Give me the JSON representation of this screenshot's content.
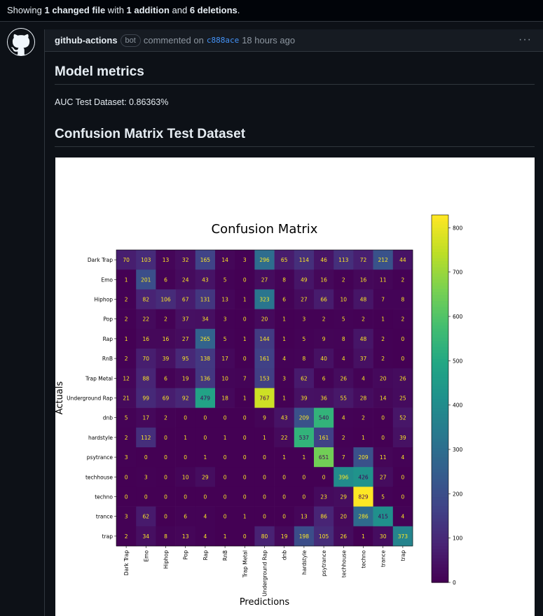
{
  "topbar": {
    "prefix": "Showing ",
    "files": "1 changed file",
    "with": " with ",
    "additions": "1 addition",
    "and": " and ",
    "deletions": "6 deletions",
    "suffix": "."
  },
  "comment": {
    "author": "github-actions",
    "badge": "bot",
    "action": "commented on",
    "sha": "c888ace",
    "time": "18 hours ago",
    "menu": "···"
  },
  "sections": {
    "metrics_title": "Model metrics",
    "auc_text": "AUC Test Dataset: 0.86363%",
    "cm_title": "Confusion Matrix Test Dataset"
  },
  "chart_data": {
    "type": "heatmap",
    "title": "Confusion Matrix",
    "xlabel": "Predictions",
    "ylabel": "Actuals",
    "colormap": "viridis",
    "colorbar": {
      "min": 0,
      "max": 829,
      "ticks": [
        0,
        100,
        200,
        300,
        400,
        500,
        600,
        700,
        800
      ]
    },
    "labels": [
      "Dark Trap",
      "Emo",
      "Hiphop",
      "Pop",
      "Rap",
      "RnB",
      "Trap Metal",
      "Underground Rap",
      "dnb",
      "hardstyle",
      "psytrance",
      "techhouse",
      "techno",
      "trance",
      "trap"
    ],
    "matrix": [
      [
        70,
        103,
        13,
        32,
        165,
        14,
        3,
        296,
        65,
        114,
        46,
        113,
        72,
        212,
        44
      ],
      [
        1,
        201,
        6,
        24,
        43,
        5,
        0,
        27,
        8,
        49,
        16,
        2,
        16,
        11,
        2
      ],
      [
        2,
        82,
        106,
        67,
        131,
        13,
        1,
        323,
        6,
        27,
        66,
        10,
        48,
        7,
        8
      ],
      [
        2,
        22,
        2,
        37,
        34,
        3,
        0,
        20,
        1,
        3,
        2,
        5,
        2,
        1,
        2
      ],
      [
        1,
        16,
        16,
        27,
        265,
        5,
        1,
        144,
        1,
        5,
        9,
        8,
        48,
        2,
        0
      ],
      [
        2,
        70,
        39,
        95,
        138,
        17,
        0,
        161,
        4,
        8,
        40,
        4,
        37,
        2,
        0
      ],
      [
        12,
        88,
        6,
        19,
        136,
        10,
        7,
        153,
        3,
        62,
        6,
        26,
        4,
        20,
        26
      ],
      [
        21,
        99,
        69,
        92,
        479,
        18,
        1,
        767,
        1,
        39,
        36,
        55,
        28,
        14,
        25
      ],
      [
        5,
        17,
        2,
        0,
        0,
        0,
        0,
        9,
        43,
        209,
        540,
        4,
        2,
        0,
        52
      ],
      [
        2,
        112,
        0,
        1,
        0,
        1,
        0,
        1,
        22,
        537,
        161,
        2,
        1,
        0,
        39
      ],
      [
        3,
        0,
        0,
        0,
        1,
        0,
        0,
        0,
        1,
        1,
        651,
        7,
        209,
        11,
        4
      ],
      [
        0,
        3,
        0,
        10,
        29,
        0,
        0,
        0,
        0,
        0,
        0,
        396,
        426,
        27,
        0
      ],
      [
        0,
        0,
        0,
        0,
        0,
        0,
        0,
        0,
        0,
        0,
        23,
        29,
        829,
        5,
        0
      ],
      [
        3,
        62,
        0,
        6,
        4,
        0,
        1,
        0,
        0,
        13,
        86,
        20,
        286,
        415,
        4
      ],
      [
        2,
        34,
        8,
        13,
        4,
        1,
        0,
        80,
        19,
        198,
        105,
        26,
        1,
        30,
        373
      ]
    ]
  }
}
